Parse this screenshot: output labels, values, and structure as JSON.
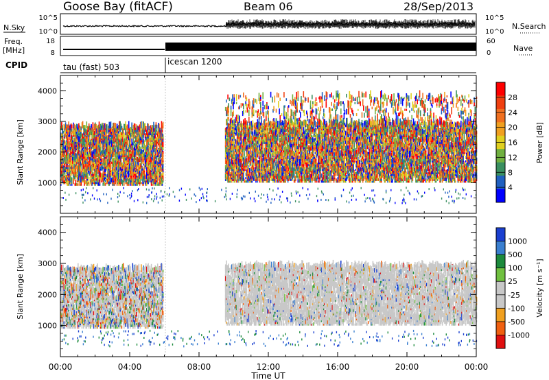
{
  "header": {
    "station": "Goose Bay (fitACF)",
    "beam": "Beam 06",
    "date": "28/Sep/2013"
  },
  "noise_panel": {
    "left_label": "N.Sky",
    "right_label": "N.Search",
    "left_ticks": [
      "10^5",
      "10^0"
    ],
    "right_ticks": [
      "10^5",
      "10^0"
    ]
  },
  "freq_panel": {
    "left_label_1": "Freq.",
    "left_label_2": "[MHz]",
    "right_label": "Nave",
    "left_ticks": [
      "18",
      "8"
    ],
    "right_ticks": [
      "60",
      "0"
    ]
  },
  "cpid": {
    "label": "CPID",
    "segments": [
      {
        "name": "tau (fast) 503",
        "start_hour": 0
      },
      {
        "name": "icescan 1200",
        "start_hour": 6
      }
    ]
  },
  "chart_data": [
    {
      "type": "heatmap",
      "title": "",
      "ylabel": "Slant Range [km]",
      "xlabel": "Time UT",
      "xlim_hours": [
        0,
        24
      ],
      "ylim": [
        0,
        4500
      ],
      "y_ticks": [
        1000,
        2000,
        3000,
        4000
      ],
      "x_tick_labels": [
        "00:00",
        "04:00",
        "08:00",
        "12:00",
        "16:00",
        "20:00",
        "00:00"
      ],
      "colorbar": {
        "label": "Power [dB]",
        "ticks": [
          "4",
          "8",
          "12",
          "16",
          "20",
          "24",
          "28"
        ],
        "colors": [
          "#0000ff",
          "#2060c0",
          "#3a8f60",
          "#70b040",
          "#e0d020",
          "#f0a020",
          "#f07020",
          "#f04010",
          "#ff0000"
        ]
      },
      "echo_regions": [
        {
          "t0": 0.0,
          "t1": 5.9,
          "r0": 900,
          "r1": 2800,
          "level": "strong"
        },
        {
          "t0": 9.5,
          "t1": 24.0,
          "r0": 1000,
          "r1": 2900,
          "level": "strong"
        },
        {
          "t0": 9.5,
          "t1": 24.0,
          "r0": 2900,
          "r1": 3800,
          "level": "weak"
        }
      ]
    },
    {
      "type": "heatmap",
      "title": "",
      "ylabel": "Slant Range [km]",
      "xlabel": "Time UT",
      "xlim_hours": [
        0,
        24
      ],
      "ylim": [
        0,
        4500
      ],
      "y_ticks": [
        1000,
        2000,
        3000,
        4000
      ],
      "x_tick_labels": [
        "00:00",
        "04:00",
        "08:00",
        "12:00",
        "16:00",
        "20:00",
        "00:00"
      ],
      "colorbar": {
        "label": "Velocity [m s⁻¹]",
        "ticks": [
          "1000",
          "500",
          "100",
          "25",
          "-25",
          "-100",
          "-500",
          "-1000"
        ],
        "colors": [
          "#1a3fd0",
          "#3a7fd0",
          "#1c8a3c",
          "#70c040",
          "#c8c8c8",
          "#c8c8c8",
          "#f0a020",
          "#f06010",
          "#e01010"
        ]
      },
      "echo_regions": [
        {
          "t0": 0.0,
          "t1": 5.9,
          "r0": 900,
          "r1": 2800,
          "level": "mixed"
        },
        {
          "t0": 9.5,
          "t1": 24.0,
          "r0": 1000,
          "r1": 2900,
          "level": "ground"
        }
      ]
    }
  ],
  "axis": {
    "xlabel": "Time UT"
  }
}
